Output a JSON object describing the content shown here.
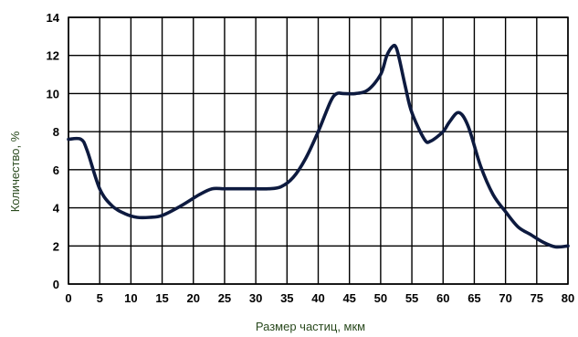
{
  "chart_data": {
    "type": "line",
    "title": "",
    "xlabel": "Размер частиц, мкм",
    "ylabel": "Количество, %",
    "xlim": [
      0,
      80
    ],
    "ylim": [
      0,
      14
    ],
    "x_ticks": [
      "0",
      "5",
      "10",
      "15",
      "20",
      "25",
      "30",
      "35",
      "40",
      "45",
      "50",
      "55",
      "60",
      "65",
      "70",
      "75",
      "80"
    ],
    "y_ticks": [
      "0",
      "2",
      "4",
      "6",
      "8",
      "10",
      "12",
      "14"
    ],
    "grid": true,
    "legend": "none",
    "series": [
      {
        "color": "#0d1a3f",
        "x": [
          0,
          2,
          3,
          5,
          7,
          9,
          11,
          13,
          15,
          18,
          21,
          23,
          25,
          28,
          30,
          32,
          34,
          36,
          38,
          40,
          42,
          43,
          44,
          46,
          48,
          50,
          51,
          52,
          52.5,
          53,
          54,
          55,
          57,
          58,
          60,
          61,
          62.5,
          64,
          66,
          68,
          70,
          72,
          74,
          76,
          78,
          80
        ],
        "y": [
          7.6,
          7.6,
          7.0,
          5.0,
          4.1,
          3.7,
          3.5,
          3.5,
          3.6,
          4.1,
          4.7,
          5.0,
          5.0,
          5.0,
          5.0,
          5.0,
          5.1,
          5.6,
          6.6,
          8.0,
          9.6,
          10.0,
          10.0,
          10.0,
          10.2,
          11.0,
          12.0,
          12.5,
          12.4,
          11.8,
          10.3,
          9.0,
          7.6,
          7.5,
          8.0,
          8.5,
          9.0,
          8.3,
          6.2,
          4.7,
          3.8,
          3.0,
          2.6,
          2.2,
          1.95,
          2.0
        ]
      }
    ]
  }
}
